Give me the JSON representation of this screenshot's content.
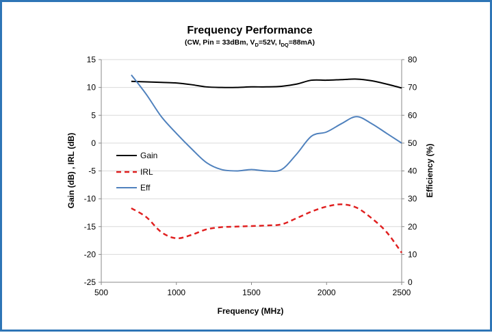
{
  "chart_data": {
    "type": "line",
    "title": "Frequency Performance",
    "subtitle_parts": {
      "a": "(CW, Pin = 33dBm, V",
      "a_sub": "D",
      "b": "=52V, I",
      "b_sub": "DQ",
      "c": "=88mA)"
    },
    "xlabel": "Frequency (MHz)",
    "ylabel_left": "Gain (dB) , IRL (dB)",
    "ylabel_right": "Efficiency (%)",
    "xlim": [
      500,
      2500
    ],
    "ylim_left": [
      -25,
      15
    ],
    "ylim_right": [
      0,
      80
    ],
    "x_ticks": [
      "500",
      "1000",
      "1500",
      "2000",
      "2500"
    ],
    "y_ticks_left": [
      "15",
      "10",
      "5",
      "0",
      "-5",
      "-10",
      "-15",
      "-20",
      "-25"
    ],
    "y_ticks_right": [
      "80",
      "70",
      "60",
      "50",
      "40",
      "30",
      "20",
      "10",
      "0"
    ],
    "legend_placement": "left",
    "grid": "horizontal",
    "series": [
      {
        "name": "Gain",
        "axis": "left",
        "color": "#000000",
        "dash": "solid",
        "x": [
          700,
          800,
          900,
          1000,
          1100,
          1200,
          1300,
          1400,
          1500,
          1600,
          1700,
          1800,
          1900,
          2000,
          2100,
          2200,
          2300,
          2400,
          2500
        ],
        "y": [
          11.1,
          11.0,
          10.9,
          10.8,
          10.5,
          10.1,
          10.0,
          10.0,
          10.1,
          10.1,
          10.2,
          10.6,
          11.3,
          11.3,
          11.4,
          11.5,
          11.2,
          10.6,
          9.9
        ]
      },
      {
        "name": "IRL",
        "axis": "left",
        "color": "#e02020",
        "dash": "dashed",
        "x": [
          700,
          800,
          900,
          1000,
          1100,
          1200,
          1300,
          1400,
          1500,
          1600,
          1700,
          1800,
          1900,
          2000,
          2100,
          2200,
          2300,
          2400,
          2500
        ],
        "y": [
          -11.7,
          -13.3,
          -16.0,
          -17.1,
          -16.5,
          -15.5,
          -15.1,
          -15.0,
          -14.9,
          -14.8,
          -14.6,
          -13.5,
          -12.3,
          -11.4,
          -11.0,
          -11.6,
          -13.5,
          -16.0,
          -19.7
        ]
      },
      {
        "name": "Eff",
        "axis": "right",
        "color": "#4f81bd",
        "dash": "solid",
        "x": [
          700,
          800,
          900,
          1000,
          1100,
          1200,
          1300,
          1400,
          1500,
          1600,
          1700,
          1800,
          1900,
          2000,
          2100,
          2200,
          2300,
          2400,
          2500
        ],
        "y": [
          74.5,
          67.5,
          59.5,
          53.5,
          48.0,
          43.0,
          40.5,
          40.0,
          40.5,
          40.0,
          40.5,
          46.0,
          52.5,
          54.0,
          57.0,
          59.5,
          57.0,
          53.5,
          50.0
        ]
      }
    ]
  }
}
